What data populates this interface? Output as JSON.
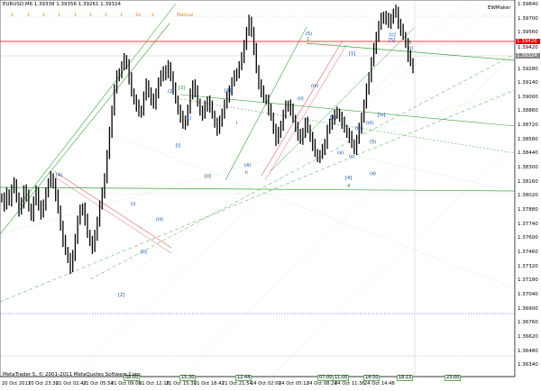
{
  "header": {
    "symbol_line": "EURUSD,M6  1.39338 1.39356 1.39261 1.39324",
    "expert": "EWMaker",
    "toolbar": [
      "1",
      "1",
      "1",
      "1",
      "1",
      "1",
      "1",
      "1",
      "1b",
      "2"
    ],
    "mode_label": "Manual"
  },
  "footer": {
    "copyright": "MetaTrader 5, © 2001-2011 MetaQuotes Software Corp."
  },
  "price_axis": {
    "labels": [
      "1.39840",
      "1.39700",
      "1.39560",
      "1.39420",
      "1.39280",
      "1.39140",
      "1.39000",
      "1.38860",
      "1.38720",
      "1.38580",
      "1.38440",
      "1.38300",
      "1.38160",
      "1.38020",
      "1.37880",
      "1.37740",
      "1.37600",
      "1.37460",
      "1.37320",
      "1.37180",
      "1.37040",
      "1.36900",
      "1.36760",
      "1.36620",
      "1.36480",
      "1.36340"
    ],
    "bid_badge": "1.39426",
    "last_badge": "1.39324"
  },
  "time_axis": {
    "labels": [
      "20 Oct 2011",
      "20 Oct 23:30",
      "21 Oct 02:42",
      "21 Oct 05:54",
      "21 Oct 09:06",
      "21 Oct 12:18",
      "21 Oct 15:30",
      "21 Oct 18:42",
      "21 Oct 21:54",
      "24 Oct 02:00",
      "24 Oct 05:12",
      "24 Oct 08:24",
      "24 Oct 11:36",
      "24 Oct 14:48"
    ],
    "tags": [
      "08:00",
      "15:30",
      "12:44",
      "07:00",
      "11:00",
      "14:50",
      "18:15",
      "23:00"
    ]
  },
  "wave_labels": [
    "(4)",
    "[2]",
    "(i)",
    "[ii]",
    "(iii)",
    "(2)",
    "[3]",
    "[4]",
    "(1)",
    "[i]",
    "[ii]",
    "i",
    "ii",
    "(4)",
    "(5)",
    "1",
    "(ii)",
    "(iii)",
    "[1]",
    "(b)",
    "(c)",
    "(a)",
    "4",
    "[4]",
    "(a)",
    "(5)",
    "(iii)",
    "[iv]",
    "[c]",
    "[5]",
    "(i)",
    "[1]",
    "5"
  ],
  "colors": {
    "candles": "#000000",
    "trendlines": "#3aa33a",
    "red_line": "#e00000",
    "dotted_blue": "#3a3aff",
    "toolbar_orange": "#e1872a"
  },
  "chart_data": {
    "type": "line",
    "symbol": "EURUSD",
    "timeframe": "M6",
    "ohlc": {
      "open": 1.39338,
      "high": 1.39356,
      "low": 1.39261,
      "close": 1.39324
    },
    "ylim": [
      1.3625,
      1.399
    ],
    "series": [
      {
        "values": [
          1.3798,
          1.379,
          1.3802,
          1.3795,
          1.3806,
          1.3812,
          1.3798,
          1.3785,
          1.3792,
          1.3806,
          1.38,
          1.3788,
          1.378,
          1.3794,
          1.3804,
          1.379,
          1.3782,
          1.379,
          1.3804,
          1.3812,
          1.3818,
          1.3812,
          1.38,
          1.3786,
          1.377,
          1.3755,
          1.3745,
          1.3738,
          1.3728,
          1.374,
          1.3758,
          1.3775,
          1.3785,
          1.3788,
          1.3776,
          1.3762,
          1.3755,
          1.3748,
          1.376,
          1.3775,
          1.379,
          1.3802,
          1.3818,
          1.384,
          1.3862,
          1.3885,
          1.3905,
          1.3918,
          1.3922,
          1.3928,
          1.3935,
          1.393,
          1.3916,
          1.3902,
          1.3895,
          1.3889,
          1.3882,
          1.3885,
          1.3898,
          1.391,
          1.3902,
          1.3895,
          1.389,
          1.3902,
          1.3912,
          1.3918,
          1.3924,
          1.392,
          1.3928,
          1.3918,
          1.3906,
          1.3895,
          1.3885,
          1.3878,
          1.387,
          1.3875,
          1.3885,
          1.39,
          1.391,
          1.3903,
          1.3892,
          1.3884,
          1.388,
          1.3888,
          1.3894,
          1.3888,
          1.388,
          1.3872,
          1.3865,
          1.3873,
          1.3882,
          1.389,
          1.3897,
          1.3905,
          1.3912,
          1.3918,
          1.3922,
          1.3928,
          1.3936,
          1.395,
          1.3962,
          1.3973,
          1.3962,
          1.3945,
          1.3925,
          1.391,
          1.3903,
          1.3896,
          1.3895,
          1.3885,
          1.3878,
          1.3866,
          1.3855,
          1.3862,
          1.387,
          1.388,
          1.3888,
          1.389,
          1.3885,
          1.3876,
          1.3868,
          1.386,
          1.3855,
          1.3863,
          1.3872,
          1.3866,
          1.3858,
          1.385,
          1.3842,
          1.3838,
          1.384,
          1.3845,
          1.3852,
          1.3865,
          1.387,
          1.3876,
          1.388,
          1.3882,
          1.3878,
          1.3872,
          1.3866,
          1.3862,
          1.3858,
          1.3851,
          1.3846,
          1.3855,
          1.3866,
          1.3878,
          1.389,
          1.3905,
          1.3918,
          1.3932,
          1.3945,
          1.3958,
          1.3968,
          1.3975,
          1.3978,
          1.3975,
          1.397,
          1.3976,
          1.398,
          1.3983,
          1.397,
          1.3964,
          1.3958,
          1.3951,
          1.3938,
          1.3932,
          1.3926
        ]
      }
    ]
  }
}
